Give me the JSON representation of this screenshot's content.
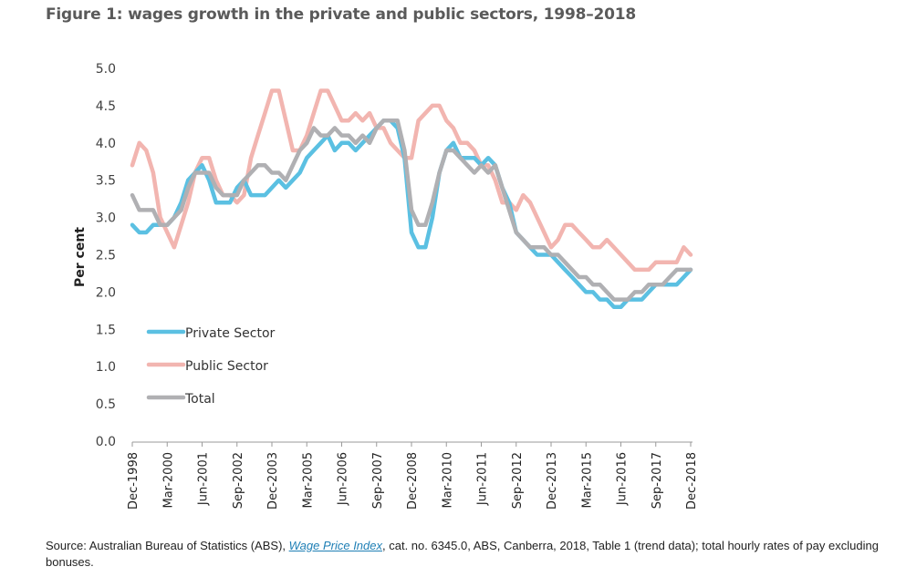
{
  "figure": {
    "title": "Figure 1: wages growth in the private and public sectors, 1998–2018",
    "source_prefix": "Source: Australian Bureau of Statistics (ABS), ",
    "source_link": "Wage Price Index",
    "source_suffix": ", cat. no. 6345.0, ABS, Canberra, 2018, Table 1 (trend data); total hourly rates of pay excluding bonuses."
  },
  "chart_data": {
    "type": "line",
    "title": "Figure 1: wages growth in the private and public sectors, 1998–2018",
    "xlabel": "",
    "ylabel": "Per cent",
    "ylim": [
      0,
      5
    ],
    "yticks": [
      "0.0",
      "0.5",
      "1.0",
      "1.5",
      "2.0",
      "2.5",
      "3.0",
      "3.5",
      "4.0",
      "4.5",
      "5.0"
    ],
    "xtick_labels": [
      "Dec-1998",
      "Mar-2000",
      "Jun-2001",
      "Sep-2002",
      "Dec-2003",
      "Mar-2005",
      "Jun-2006",
      "Sep-2007",
      "Dec-2008",
      "Mar-2010",
      "Jun-2011",
      "Sep-2012",
      "Dec-2013",
      "Mar-2015",
      "Jun-2016",
      "Sep-2017",
      "Dec-2018"
    ],
    "xtick_every_quarters": 5,
    "x_start": "Dec-1998",
    "x_end": "Dec-2018",
    "x_frequency": "quarterly",
    "grid": false,
    "legend_position": "lower-left",
    "series": [
      {
        "name": "Private Sector",
        "color": "#5bc0e2",
        "values": [
          2.9,
          2.8,
          2.8,
          2.9,
          2.9,
          2.9,
          3.0,
          3.2,
          3.5,
          3.6,
          3.7,
          3.5,
          3.2,
          3.2,
          3.2,
          3.4,
          3.5,
          3.3,
          3.3,
          3.3,
          3.4,
          3.5,
          3.4,
          3.5,
          3.6,
          3.8,
          3.9,
          4.0,
          4.1,
          3.9,
          4.0,
          4.0,
          3.9,
          4.0,
          4.1,
          4.2,
          4.3,
          4.3,
          4.2,
          3.8,
          2.8,
          2.6,
          2.6,
          3.0,
          3.6,
          3.9,
          4.0,
          3.8,
          3.8,
          3.8,
          3.7,
          3.8,
          3.7,
          3.4,
          3.2,
          2.8,
          2.7,
          2.6,
          2.5,
          2.5,
          2.5,
          2.4,
          2.3,
          2.2,
          2.1,
          2.0,
          2.0,
          1.9,
          1.9,
          1.8,
          1.8,
          1.9,
          1.9,
          1.9,
          2.0,
          2.1,
          2.1,
          2.1,
          2.1,
          2.2,
          2.3
        ]
      },
      {
        "name": "Public Sector",
        "color": "#f2b5b0",
        "values": [
          3.7,
          4.0,
          3.9,
          3.6,
          3.0,
          2.8,
          2.6,
          2.9,
          3.2,
          3.6,
          3.8,
          3.8,
          3.5,
          3.3,
          3.3,
          3.2,
          3.3,
          3.8,
          4.1,
          4.4,
          4.7,
          4.7,
          4.3,
          3.9,
          3.9,
          4.1,
          4.4,
          4.7,
          4.7,
          4.5,
          4.3,
          4.3,
          4.4,
          4.3,
          4.4,
          4.2,
          4.2,
          4.0,
          3.9,
          3.8,
          3.8,
          4.3,
          4.4,
          4.5,
          4.5,
          4.3,
          4.2,
          4.0,
          4.0,
          3.9,
          3.7,
          3.7,
          3.5,
          3.2,
          3.2,
          3.1,
          3.3,
          3.2,
          3.0,
          2.8,
          2.6,
          2.7,
          2.9,
          2.9,
          2.8,
          2.7,
          2.6,
          2.6,
          2.7,
          2.6,
          2.5,
          2.4,
          2.3,
          2.3,
          2.3,
          2.4,
          2.4,
          2.4,
          2.4,
          2.6,
          2.5
        ]
      },
      {
        "name": "Total",
        "color": "#b0b0b3",
        "values": [
          3.3,
          3.1,
          3.1,
          3.1,
          2.9,
          2.9,
          3.0,
          3.1,
          3.4,
          3.6,
          3.6,
          3.6,
          3.4,
          3.3,
          3.3,
          3.3,
          3.5,
          3.6,
          3.7,
          3.7,
          3.6,
          3.6,
          3.5,
          3.7,
          3.9,
          4.0,
          4.2,
          4.1,
          4.1,
          4.2,
          4.1,
          4.1,
          4.0,
          4.1,
          4.0,
          4.2,
          4.3,
          4.3,
          4.3,
          3.9,
          3.1,
          2.9,
          2.9,
          3.2,
          3.6,
          3.9,
          3.9,
          3.8,
          3.7,
          3.6,
          3.7,
          3.6,
          3.7,
          3.4,
          3.1,
          2.8,
          2.7,
          2.6,
          2.6,
          2.6,
          2.5,
          2.5,
          2.4,
          2.3,
          2.2,
          2.2,
          2.1,
          2.1,
          2.0,
          1.9,
          1.9,
          1.9,
          2.0,
          2.0,
          2.1,
          2.1,
          2.1,
          2.2,
          2.3,
          2.3,
          2.3
        ]
      }
    ]
  }
}
